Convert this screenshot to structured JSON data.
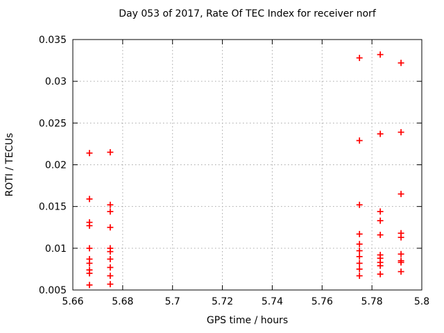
{
  "chart_data": {
    "type": "scatter",
    "title": "Day 053 of 2017, Rate Of TEC Index for receiver norf",
    "xlabel": "GPS time / hours",
    "ylabel": "ROTI / TECUs",
    "xlim": [
      5.66,
      5.8
    ],
    "ylim": [
      0.005,
      0.035
    ],
    "xticks": [
      5.66,
      5.68,
      5.7,
      5.72,
      5.74,
      5.76,
      5.78,
      5.8
    ],
    "xtick_labels": [
      "5.66",
      "5.68",
      "5.7",
      "5.72",
      "5.74",
      "5.76",
      "5.78",
      "5.8"
    ],
    "yticks": [
      0.005,
      0.01,
      0.015,
      0.02,
      0.025,
      0.03,
      0.035
    ],
    "ytick_labels": [
      "0.005",
      "0.01",
      "0.015",
      "0.02",
      "0.025",
      "0.03",
      "0.035"
    ],
    "grid": true,
    "legend_position": "none",
    "marker": {
      "shape": "plus",
      "color": "#ff0000",
      "size": 9
    },
    "colors": {
      "marker": "#ff0000",
      "border": "#000000",
      "grid": "#a6a6a6",
      "text": "#000000",
      "background": "#ffffff"
    },
    "series": [
      {
        "name": "ROTI",
        "points": [
          [
            5.666667,
            0.0214
          ],
          [
            5.666667,
            0.0159
          ],
          [
            5.666667,
            0.0131
          ],
          [
            5.666667,
            0.0127
          ],
          [
            5.666667,
            0.01
          ],
          [
            5.666667,
            0.0087
          ],
          [
            5.666667,
            0.0082
          ],
          [
            5.666667,
            0.0074
          ],
          [
            5.666667,
            0.007
          ],
          [
            5.666667,
            0.0056
          ],
          [
            5.675,
            0.0215
          ],
          [
            5.675,
            0.0152
          ],
          [
            5.675,
            0.0144
          ],
          [
            5.675,
            0.0125
          ],
          [
            5.675,
            0.01
          ],
          [
            5.675,
            0.0096
          ],
          [
            5.675,
            0.0087
          ],
          [
            5.675,
            0.0077
          ],
          [
            5.675,
            0.0067
          ],
          [
            5.675,
            0.0057
          ],
          [
            5.775,
            0.0328
          ],
          [
            5.775,
            0.0229
          ],
          [
            5.775,
            0.0152
          ],
          [
            5.775,
            0.0117
          ],
          [
            5.775,
            0.0105
          ],
          [
            5.775,
            0.0097
          ],
          [
            5.775,
            0.009
          ],
          [
            5.775,
            0.0082
          ],
          [
            5.775,
            0.0075
          ],
          [
            5.775,
            0.0067
          ],
          [
            5.783333,
            0.0332
          ],
          [
            5.783333,
            0.0237
          ],
          [
            5.783333,
            0.0144
          ],
          [
            5.783333,
            0.0133
          ],
          [
            5.783333,
            0.0116
          ],
          [
            5.783333,
            0.0092
          ],
          [
            5.783333,
            0.0088
          ],
          [
            5.783333,
            0.0083
          ],
          [
            5.783333,
            0.0079
          ],
          [
            5.783333,
            0.0069
          ],
          [
            5.791667,
            0.0322
          ],
          [
            5.791667,
            0.0239
          ],
          [
            5.791667,
            0.0165
          ],
          [
            5.791667,
            0.0118
          ],
          [
            5.791667,
            0.0113
          ],
          [
            5.791667,
            0.0093
          ],
          [
            5.791667,
            0.0085
          ],
          [
            5.791667,
            0.0083
          ],
          [
            5.791667,
            0.0072
          ]
        ]
      }
    ]
  }
}
